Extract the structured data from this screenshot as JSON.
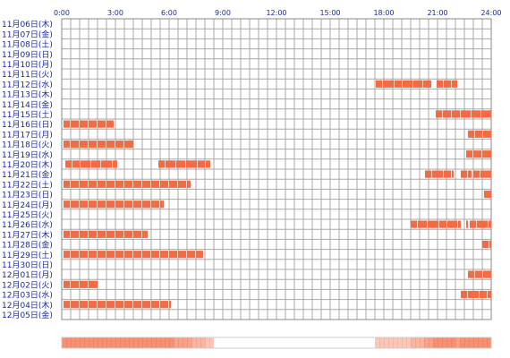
{
  "chart_data": {
    "type": "timeline",
    "x_ticks": [
      "0:00",
      "3:00",
      "6:00",
      "9:00",
      "12:00",
      "15:00",
      "18:00",
      "21:00",
      "24:00"
    ],
    "x_range_hours": [
      0,
      24
    ],
    "grid": true,
    "bar_color": "#f26b45",
    "bar_gap_color": "#fbd2c2",
    "summary_strip": true,
    "rows": [
      {
        "label": "11月06日(木)",
        "segments": []
      },
      {
        "label": "11月07日(金)",
        "segments": []
      },
      {
        "label": "11月08日(土)",
        "segments": []
      },
      {
        "label": "11月09日(日)",
        "segments": []
      },
      {
        "label": "11月10日(月)",
        "segments": []
      },
      {
        "label": "11月11日(火)",
        "segments": []
      },
      {
        "label": "11月12日(水)",
        "segments": [
          [
            17.55,
            20.65
          ],
          [
            20.95,
            22.1
          ]
        ]
      },
      {
        "label": "11月13日(木)",
        "segments": []
      },
      {
        "label": "11月14日(金)",
        "segments": []
      },
      {
        "label": "11月15日(土)",
        "segments": [
          [
            20.9,
            24.0
          ]
        ]
      },
      {
        "label": "11月16日(日)",
        "segments": [
          [
            0.1,
            2.9
          ]
        ]
      },
      {
        "label": "11月17日(月)",
        "segments": [
          [
            22.7,
            24.0
          ]
        ]
      },
      {
        "label": "11月18日(火)",
        "segments": [
          [
            0.1,
            4.0
          ]
        ]
      },
      {
        "label": "11月19日(水)",
        "segments": [
          [
            22.6,
            24.0
          ]
        ]
      },
      {
        "label": "11月20日(木)",
        "segments": [
          [
            0.2,
            3.1
          ],
          [
            5.4,
            8.3
          ]
        ]
      },
      {
        "label": "11月21日(金)",
        "segments": [
          [
            20.3,
            21.9
          ],
          [
            22.3,
            22.9
          ],
          [
            23.0,
            24.0
          ]
        ]
      },
      {
        "label": "11月22日(土)",
        "segments": [
          [
            0.1,
            7.2
          ]
        ]
      },
      {
        "label": "11月23日(日)",
        "segments": [
          [
            23.6,
            24.0
          ]
        ]
      },
      {
        "label": "11月24日(月)",
        "segments": [
          [
            0.1,
            5.7
          ]
        ]
      },
      {
        "label": "11月25日(火)",
        "segments": []
      },
      {
        "label": "11月26日(水)",
        "segments": [
          [
            19.5,
            22.3
          ],
          [
            22.6,
            22.7
          ],
          [
            22.8,
            24.0
          ]
        ]
      },
      {
        "label": "11月27日(木)",
        "segments": [
          [
            0.1,
            4.8
          ]
        ]
      },
      {
        "label": "11月28日(金)",
        "segments": [
          [
            23.5,
            24.0
          ]
        ]
      },
      {
        "label": "11月29日(土)",
        "segments": [
          [
            0.1,
            7.9
          ]
        ]
      },
      {
        "label": "11月30日(日)",
        "segments": []
      },
      {
        "label": "12月01日(月)",
        "segments": [
          [
            22.7,
            24.0
          ]
        ]
      },
      {
        "label": "12月02日(火)",
        "segments": [
          [
            0.1,
            2.0
          ]
        ]
      },
      {
        "label": "12月03日(水)",
        "segments": [
          [
            22.3,
            24.0
          ]
        ]
      },
      {
        "label": "12月04日(木)",
        "segments": [
          [
            0.1,
            6.1
          ]
        ]
      },
      {
        "label": "12月05日(金)",
        "segments": []
      }
    ]
  }
}
